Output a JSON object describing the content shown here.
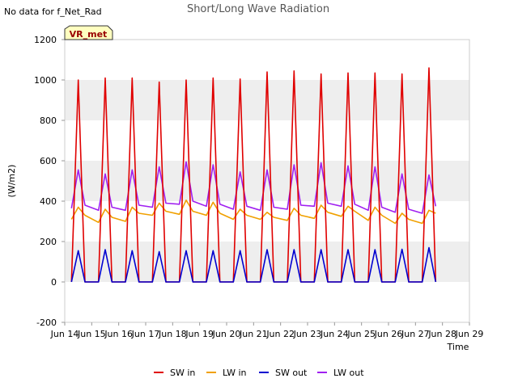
{
  "chart_data": {
    "type": "line",
    "title": "Short/Long Wave Radiation",
    "corner_note": "No data for f_Net_Rad",
    "site_badge": "VR_met",
    "xlabel": "Time",
    "ylabel": "(W/m2)",
    "x_ticks": [
      "Jun 14",
      "Jun 15",
      "Jun 16",
      "Jun 17",
      "Jun 18",
      "Jun 19",
      "Jun 20",
      "Jun 21",
      "Jun 22",
      "Jun 23",
      "Jun 24",
      "Jun 25",
      "Jun 26",
      "Jun 27",
      "Jun 28",
      "Jun 29"
    ],
    "x_range_days": [
      14,
      29
    ],
    "ylim": [
      -200,
      1200
    ],
    "y_ticks": [
      -200,
      0,
      200,
      400,
      600,
      800,
      1000,
      1200
    ],
    "grid": "alternating horizontal bands",
    "legend_position": "bottom",
    "colors": {
      "SW in": "#e00000",
      "LW in": "#f0a000",
      "SW out": "#0000d0",
      "LW out": "#a020f0",
      "band": "#eeeeee",
      "badge_fill": "#ffffc0",
      "badge_text": "#990000"
    },
    "series": [
      {
        "name": "SW in",
        "x": [
          14.25,
          14.5,
          14.75,
          15.25,
          15.5,
          15.75,
          16.25,
          16.5,
          16.75,
          17.25,
          17.5,
          17.75,
          18.25,
          18.5,
          18.75,
          19.25,
          19.5,
          19.75,
          20.25,
          20.5,
          20.75,
          21.25,
          21.5,
          21.75,
          22.25,
          22.5,
          22.75,
          23.25,
          23.5,
          23.75,
          24.25,
          24.5,
          24.75,
          25.25,
          25.5,
          25.75,
          26.25,
          26.5,
          26.75,
          27.25,
          27.5,
          27.6,
          27.75
        ],
        "y": [
          0,
          1000,
          0,
          0,
          1010,
          0,
          0,
          1010,
          0,
          0,
          990,
          0,
          0,
          1000,
          0,
          0,
          1010,
          0,
          0,
          1005,
          0,
          0,
          1040,
          0,
          0,
          1045,
          0,
          0,
          1030,
          0,
          0,
          1035,
          0,
          0,
          1035,
          0,
          0,
          1030,
          0,
          0,
          1060,
          640,
          0
        ]
      },
      {
        "name": "LW in",
        "x": [
          14.25,
          14.5,
          14.75,
          15.25,
          15.5,
          15.75,
          16.25,
          16.5,
          16.75,
          17.25,
          17.5,
          17.75,
          18.25,
          18.5,
          18.75,
          19.25,
          19.5,
          19.75,
          20.25,
          20.5,
          20.75,
          21.25,
          21.5,
          21.75,
          22.25,
          22.5,
          22.75,
          23.25,
          23.5,
          23.75,
          24.25,
          24.5,
          24.75,
          25.25,
          25.5,
          25.75,
          26.25,
          26.5,
          26.75,
          27.25,
          27.5,
          27.75
        ],
        "y": [
          310,
          370,
          330,
          295,
          360,
          320,
          300,
          370,
          340,
          330,
          390,
          350,
          335,
          405,
          350,
          330,
          395,
          340,
          310,
          360,
          330,
          310,
          345,
          320,
          305,
          365,
          330,
          315,
          380,
          345,
          325,
          375,
          350,
          305,
          370,
          330,
          290,
          340,
          310,
          290,
          355,
          340
        ]
      },
      {
        "name": "SW out",
        "x": [
          14.25,
          14.5,
          14.75,
          15.25,
          15.5,
          15.75,
          16.25,
          16.5,
          16.75,
          17.25,
          17.5,
          17.75,
          18.25,
          18.5,
          18.75,
          19.25,
          19.5,
          19.75,
          20.25,
          20.5,
          20.75,
          21.25,
          21.5,
          21.75,
          22.25,
          22.5,
          22.75,
          23.25,
          23.5,
          23.75,
          24.25,
          24.5,
          24.75,
          25.25,
          25.5,
          25.75,
          26.25,
          26.5,
          26.75,
          27.25,
          27.5,
          27.75
        ],
        "y": [
          0,
          155,
          0,
          0,
          160,
          0,
          0,
          155,
          0,
          0,
          150,
          0,
          0,
          155,
          0,
          0,
          155,
          0,
          0,
          155,
          0,
          0,
          160,
          0,
          0,
          160,
          0,
          0,
          160,
          0,
          0,
          160,
          0,
          0,
          160,
          0,
          0,
          162,
          0,
          0,
          170,
          0
        ]
      },
      {
        "name": "LW out",
        "x": [
          14.25,
          14.5,
          14.75,
          15.25,
          15.5,
          15.75,
          16.25,
          16.5,
          16.75,
          17.25,
          17.5,
          17.75,
          18.25,
          18.5,
          18.75,
          19.25,
          19.5,
          19.75,
          20.25,
          20.5,
          20.75,
          21.25,
          21.5,
          21.75,
          22.25,
          22.5,
          22.75,
          23.25,
          23.5,
          23.75,
          24.25,
          24.5,
          24.75,
          25.25,
          25.5,
          25.75,
          26.25,
          26.5,
          26.75,
          27.25,
          27.5,
          27.75
        ],
        "y": [
          365,
          555,
          380,
          355,
          535,
          370,
          355,
          555,
          380,
          370,
          570,
          390,
          385,
          595,
          400,
          375,
          580,
          385,
          360,
          545,
          375,
          355,
          555,
          370,
          360,
          580,
          380,
          375,
          590,
          390,
          375,
          575,
          385,
          355,
          570,
          370,
          345,
          535,
          360,
          340,
          530,
          375
        ]
      }
    ]
  }
}
